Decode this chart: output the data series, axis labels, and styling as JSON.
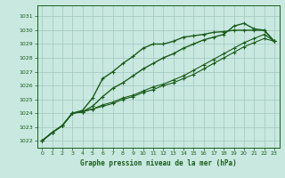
{
  "title": "Graphe pression niveau de la mer (hPa)",
  "bg_color": "#c8e8e0",
  "grid_color": "#a0c8c0",
  "line_color": "#1a5c1a",
  "xlim": [
    -0.5,
    23.5
  ],
  "ylim": [
    1021.5,
    1031.8
  ],
  "yticks": [
    1022,
    1023,
    1024,
    1025,
    1026,
    1027,
    1028,
    1029,
    1030,
    1031
  ],
  "xticks": [
    0,
    1,
    2,
    3,
    4,
    5,
    6,
    7,
    8,
    9,
    10,
    11,
    12,
    13,
    14,
    15,
    16,
    17,
    18,
    19,
    20,
    21,
    22,
    23
  ],
  "series": [
    [
      1022.0,
      1022.6,
      1023.1,
      1024.0,
      1024.2,
      1025.1,
      1026.5,
      1027.0,
      1027.6,
      1028.1,
      1028.7,
      1029.0,
      1029.0,
      1029.2,
      1029.5,
      1029.6,
      1029.7,
      1029.85,
      1029.9,
      1030.0,
      1030.0,
      1030.0,
      1030.0,
      1029.2
    ],
    [
      1022.0,
      1022.6,
      1023.1,
      1024.0,
      1024.1,
      1024.5,
      1025.2,
      1025.8,
      1026.2,
      1026.7,
      1027.2,
      1027.6,
      1028.0,
      1028.3,
      1028.7,
      1029.0,
      1029.3,
      1029.5,
      1029.7,
      1030.3,
      1030.5,
      1030.1,
      1030.0,
      1029.2
    ],
    [
      1022.0,
      1022.6,
      1023.1,
      1024.0,
      1024.1,
      1024.3,
      1024.6,
      1024.8,
      1025.1,
      1025.3,
      1025.6,
      1025.9,
      1026.1,
      1026.4,
      1026.7,
      1027.1,
      1027.5,
      1027.9,
      1028.3,
      1028.7,
      1029.1,
      1029.4,
      1029.7,
      1029.2
    ],
    [
      1022.0,
      1022.6,
      1023.1,
      1024.0,
      1024.1,
      1024.3,
      1024.5,
      1024.7,
      1025.0,
      1025.2,
      1025.5,
      1025.7,
      1026.0,
      1026.2,
      1026.5,
      1026.8,
      1027.2,
      1027.6,
      1028.0,
      1028.4,
      1028.8,
      1029.1,
      1029.4,
      1029.2
    ]
  ]
}
